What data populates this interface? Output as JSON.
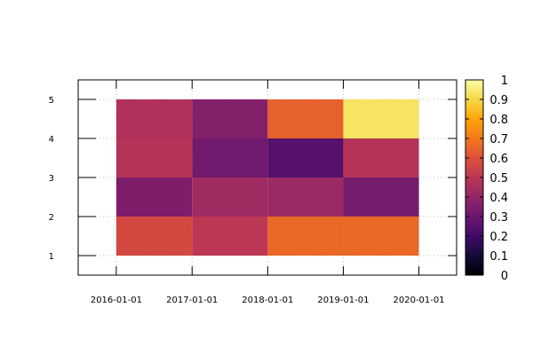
{
  "chart_data": {
    "type": "heatmap",
    "x_ticks": [
      "2016-01-01",
      "2017-01-01",
      "2018-01-01",
      "2019-01-01",
      "2020-01-01"
    ],
    "y_ticks": [
      "1",
      "2",
      "3",
      "4",
      "5"
    ],
    "colorbar_ticks": [
      "0",
      "0.1",
      "0.2",
      "0.3",
      "0.4",
      "0.5",
      "0.6",
      "0.7",
      "0.8",
      "0.9",
      "1"
    ],
    "zlim": [
      0,
      1
    ],
    "colormap": "inferno",
    "grid": true,
    "x_cell_edges": [
      "2016-01-01",
      "2017-01-01",
      "2018-01-01",
      "2019-01-01",
      "2020-01-01"
    ],
    "y_cell_edges": [
      1,
      2,
      3,
      4,
      5
    ],
    "rows": [
      {
        "y_from": 1,
        "y_to": 2,
        "values": [
          0.57,
          0.5,
          0.66,
          0.66
        ]
      },
      {
        "y_from": 2,
        "y_to": 3,
        "values": [
          0.35,
          0.43,
          0.42,
          0.33
        ]
      },
      {
        "y_from": 3,
        "y_to": 4,
        "values": [
          0.48,
          0.32,
          0.25,
          0.48
        ]
      },
      {
        "y_from": 4,
        "y_to": 5,
        "values": [
          0.47,
          0.36,
          0.64,
          0.93
        ]
      }
    ],
    "xlim": [
      "2015-07-01",
      "2020-07-01"
    ],
    "ylim": [
      0.5,
      5.5
    ]
  }
}
